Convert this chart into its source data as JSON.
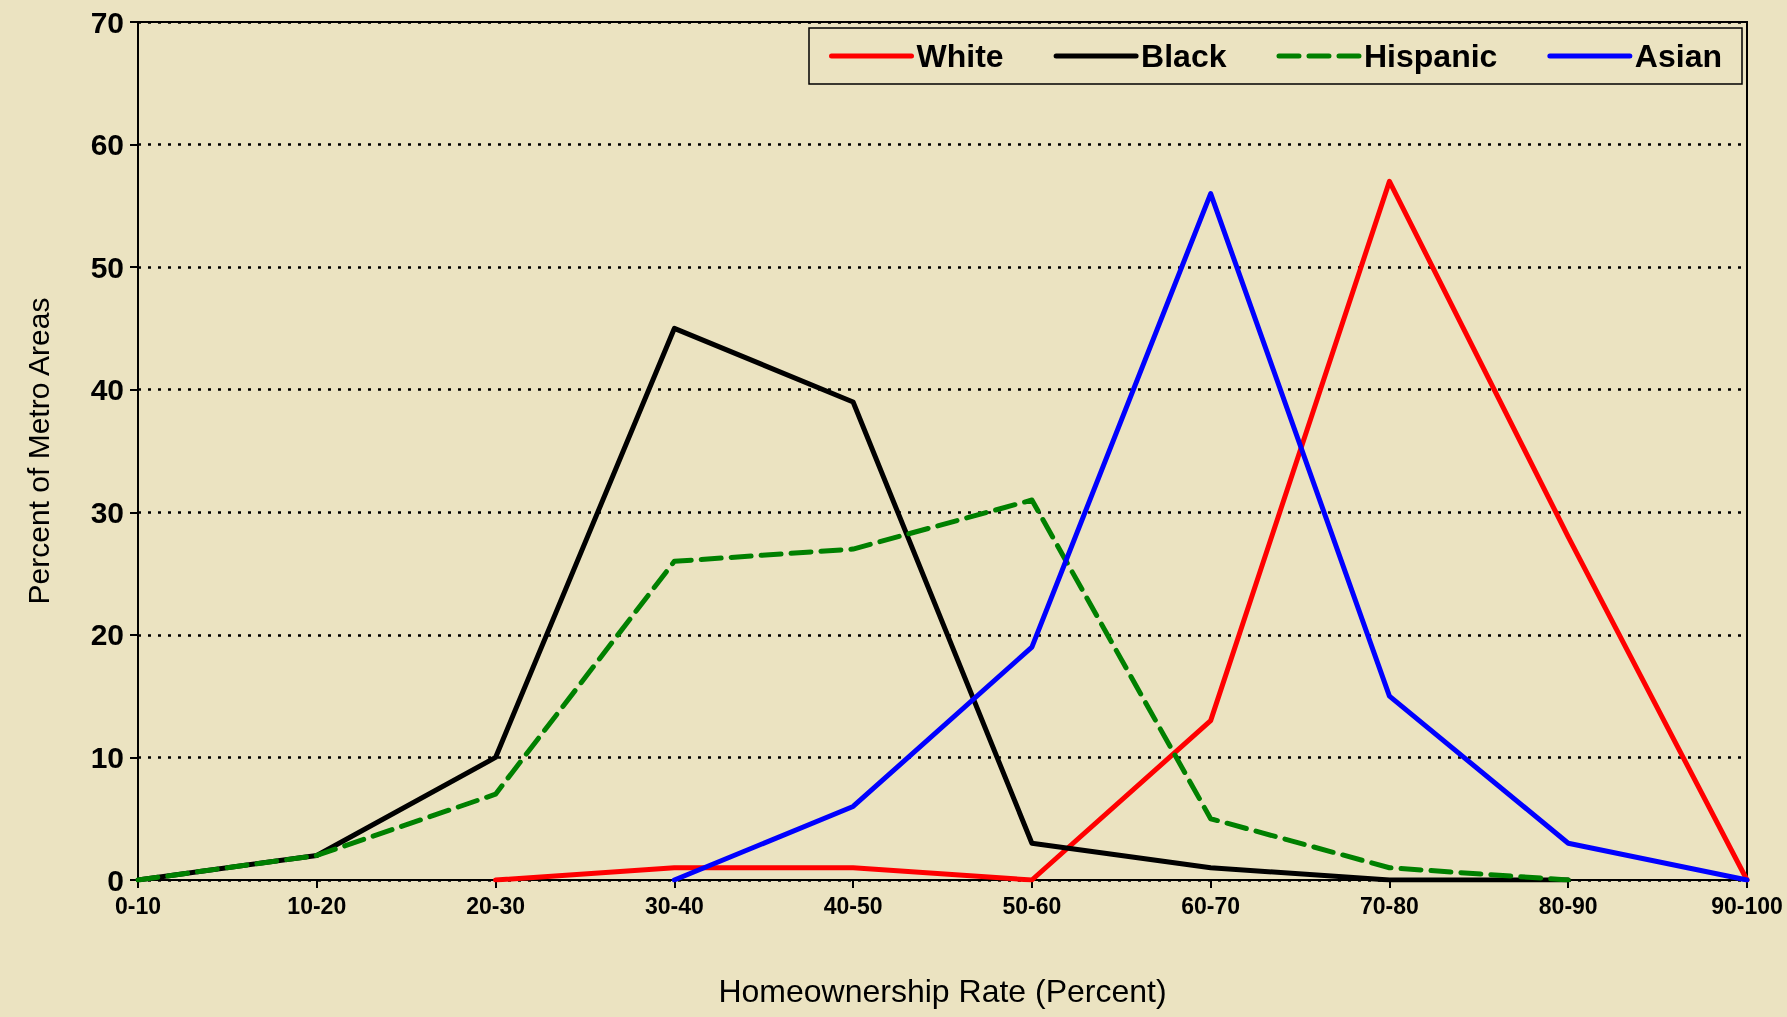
{
  "chart_data": {
    "type": "line",
    "xlabel": "Homeownership Rate (Percent)",
    "ylabel": "Percent of Metro Areas",
    "categories": [
      "0-10",
      "10-20",
      "20-30",
      "30-40",
      "40-50",
      "50-60",
      "60-70",
      "70-80",
      "80-90",
      "90-100"
    ],
    "series": [
      {
        "name": "White",
        "color": "#ff0000",
        "values": [
          null,
          null,
          0,
          1,
          1,
          0,
          13,
          57,
          28,
          0
        ]
      },
      {
        "name": "Black",
        "color": "#000000",
        "values": [
          0,
          2,
          10,
          45,
          39,
          3,
          1,
          0,
          0,
          null
        ]
      },
      {
        "name": "Hispanic",
        "color": "#008000",
        "line_style": "dashed",
        "values": [
          0,
          2,
          7,
          26,
          27,
          31,
          5,
          1,
          0,
          null
        ]
      },
      {
        "name": "Asian",
        "color": "#0000ff",
        "values": [
          null,
          null,
          null,
          0,
          6,
          19,
          56,
          15,
          3,
          0
        ]
      }
    ],
    "ylim": [
      0,
      70
    ],
    "yticks": [
      0,
      10,
      20,
      30,
      40,
      50,
      60,
      70
    ],
    "grid": "y",
    "legend": "top right",
    "marker": "none"
  }
}
